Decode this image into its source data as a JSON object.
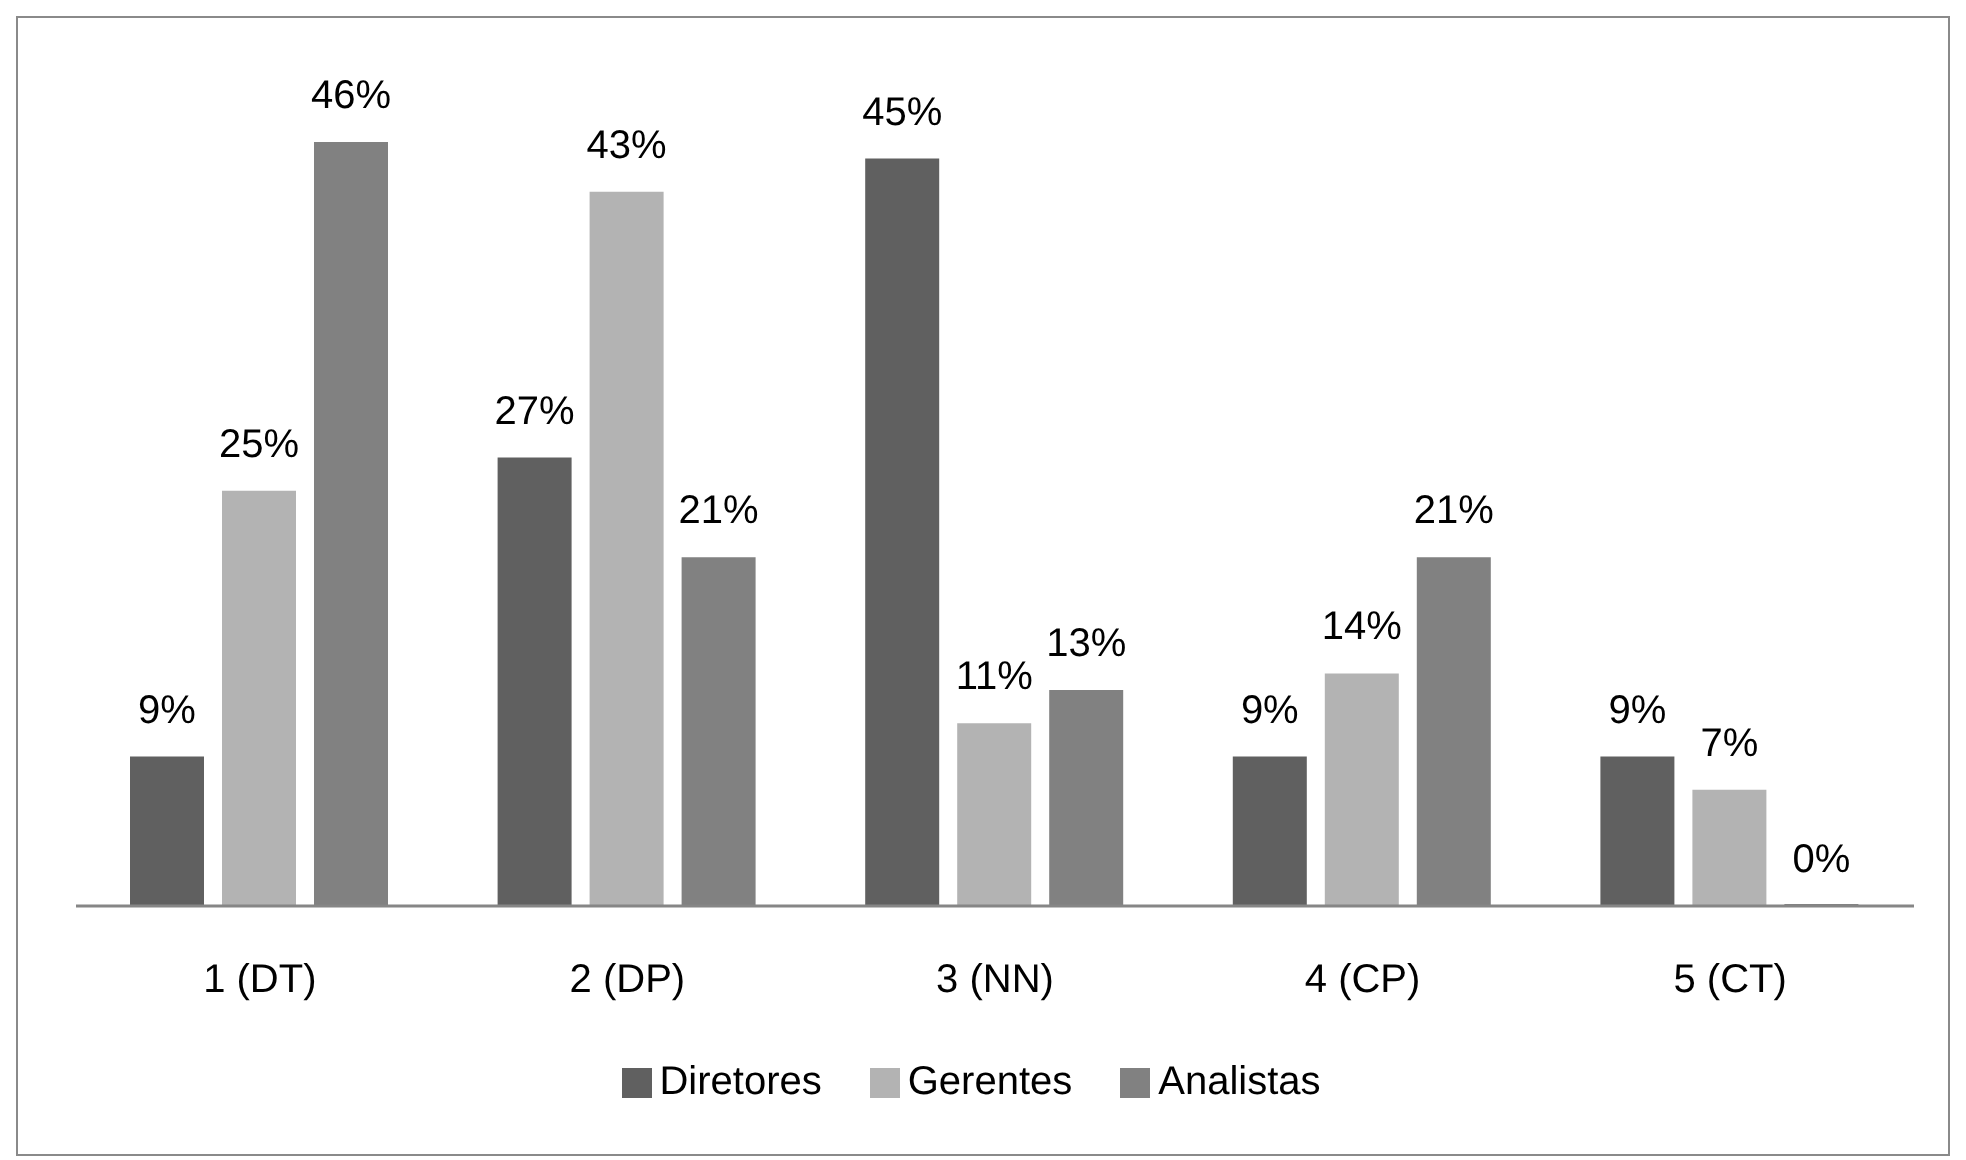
{
  "chart_data": {
    "type": "bar",
    "categories": [
      "1 (DT)",
      "2 (DP)",
      "3 (NN)",
      "4 (CP)",
      "5 (CT)"
    ],
    "series": [
      {
        "name": "Diretores",
        "color": "#606060",
        "values": [
          9,
          27,
          45,
          9,
          9
        ],
        "value_labels": [
          "9%",
          "27%",
          "45%",
          "9%",
          "9%"
        ]
      },
      {
        "name": "Gerentes",
        "color": "#b3b3b3",
        "values": [
          25,
          43,
          11,
          14,
          7
        ],
        "value_labels": [
          "25%",
          "43%",
          "11%",
          "14%",
          "7%"
        ]
      },
      {
        "name": "Analistas",
        "color": "#818181",
        "values": [
          46,
          21,
          13,
          21,
          0
        ],
        "value_labels": [
          "46%",
          "21%",
          "13%",
          "21%",
          "0%"
        ]
      }
    ],
    "legend": "bottom"
  }
}
